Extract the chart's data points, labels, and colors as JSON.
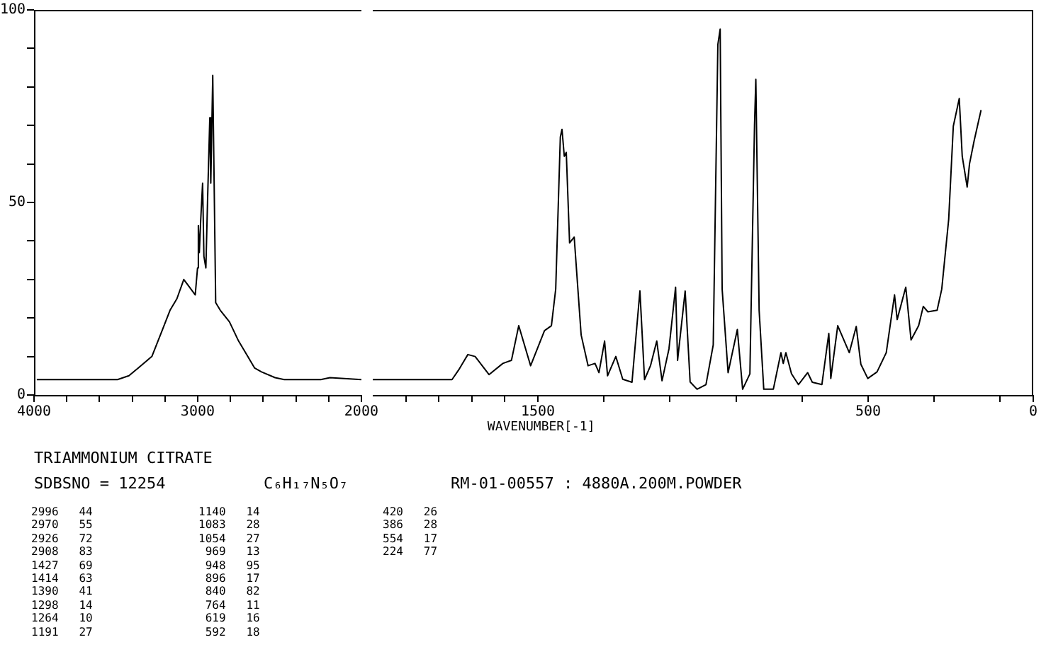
{
  "chart_data": [
    {
      "type": "line",
      "color": "#000000",
      "xlim": [
        4000,
        2000
      ],
      "ylim": [
        0,
        100
      ],
      "xticks": [
        4000,
        {
          "value": 3800,
          "label": null
        },
        {
          "value": 3600,
          "label": null
        },
        {
          "value": 3400,
          "label": null
        },
        {
          "value": 3200,
          "label": null
        },
        3000,
        {
          "value": 2800,
          "label": null
        },
        {
          "value": 2600,
          "label": null
        },
        {
          "value": 2400,
          "label": null
        },
        {
          "value": 2200,
          "label": null
        },
        2000
      ],
      "yticks": [
        0,
        {
          "value": 10,
          "label": null
        },
        {
          "value": 20,
          "label": null
        },
        {
          "value": 30,
          "label": null
        },
        {
          "value": 40,
          "label": null
        },
        50,
        {
          "value": 60,
          "label": null
        },
        {
          "value": 70,
          "label": null
        },
        {
          "value": 80,
          "label": null
        },
        {
          "value": 90,
          "label": null
        },
        100
      ],
      "x": [
        3983,
        3490,
        3420,
        3364,
        3280,
        3224,
        3169,
        3127,
        3085,
        3050,
        3015,
        3001,
        2996,
        2990,
        2982,
        2970,
        2962,
        2950,
        2940,
        2926,
        2920,
        2908,
        2890,
        2862,
        2806,
        2750,
        2694,
        2652,
        2610,
        2527,
        2471,
        2248,
        2192,
        2000
      ],
      "values": [
        4,
        4,
        5,
        7,
        10,
        16,
        22,
        25,
        30,
        28,
        26,
        33,
        44,
        37,
        45,
        55,
        36,
        33,
        50,
        72,
        55,
        83,
        24,
        22,
        19,
        14,
        10,
        7,
        6,
        4.5,
        4,
        4,
        4.5,
        4
      ],
      "annotations": [
        "TRIAMMONIUM CITRATE",
        "SDBSNO = 12254",
        "C₆H₁₇N₅O₇",
        "RM-01-00557 : 4880A.200M.POWDER",
        "2996   44",
        "2970   55",
        "2926   72",
        "2908   83",
        "1427   69",
        "1414   63",
        "1390   41",
        "1298   14",
        "1264   10",
        "1191   27",
        "1140   14",
        "1083   28",
        "1054   27",
        " 969   13",
        " 948   95",
        " 896   17",
        " 840   82",
        " 764   11",
        " 619   16",
        " 592   18",
        "420   26",
        "386   28",
        "554   17",
        "224   77"
      ]
    },
    {
      "type": "line",
      "color": "#000000",
      "xlim": [
        2000,
        0
      ],
      "ylim": [
        0,
        100
      ],
      "tick_labels": "x",
      "xlabel": "WAVENUMBER[-1]",
      "xticks": [
        {
          "value": 1900,
          "label": null
        },
        {
          "value": 1800,
          "label": null
        },
        {
          "value": 1700,
          "label": null
        },
        {
          "value": 1600,
          "label": null
        },
        1500,
        {
          "value": 1300,
          "label": null
        },
        {
          "value": 1100,
          "label": null
        },
        {
          "value": 900,
          "label": null
        },
        {
          "value": 700,
          "label": null
        },
        500,
        {
          "value": 300,
          "label": null
        },
        {
          "value": 100,
          "label": null
        },
        0
      ],
      "x": [
        2000,
        1929,
        1760,
        1740,
        1712,
        1690,
        1648,
        1606,
        1580,
        1558,
        1522,
        1480,
        1459,
        1446,
        1432,
        1427,
        1420,
        1414,
        1404,
        1390,
        1369,
        1348,
        1327,
        1315,
        1298,
        1289,
        1264,
        1243,
        1215,
        1191,
        1177,
        1159,
        1140,
        1124,
        1103,
        1083,
        1077,
        1054,
        1039,
        1018,
        991,
        969,
        955,
        948,
        942,
        924,
        896,
        880,
        858,
        844,
        840,
        830,
        816,
        787,
        764,
        757,
        749,
        732,
        711,
        683,
        669,
        640,
        619,
        613,
        592,
        557,
        536,
        522,
        501,
        473,
        445,
        420,
        412,
        386,
        370,
        347,
        333,
        319,
        291,
        277,
        256,
        242,
        224,
        215,
        200,
        193,
        179,
        158
      ],
      "values": [
        4,
        4,
        4,
        6.5,
        10.5,
        10,
        5.3,
        8.2,
        9,
        18,
        7.6,
        16.7,
        18,
        27.5,
        67,
        69,
        62,
        63,
        39.5,
        41,
        15.6,
        7.6,
        8.2,
        5.8,
        14,
        5,
        10,
        4.1,
        3.3,
        27,
        4,
        7.6,
        14,
        3.7,
        12,
        28,
        9,
        27,
        3.4,
        1.5,
        2.7,
        13,
        91,
        95,
        27.5,
        5.8,
        17,
        1.5,
        5.5,
        70,
        82,
        22,
        1.5,
        1.5,
        11,
        8.2,
        11,
        5.5,
        2.7,
        5.8,
        3.3,
        2.7,
        16,
        4.3,
        18,
        11,
        17.8,
        8,
        4.3,
        6,
        11,
        26,
        19.6,
        28,
        14.3,
        18,
        23,
        21.6,
        22,
        27.5,
        45.6,
        69.8,
        77,
        62,
        54,
        60,
        66,
        74
      ]
    }
  ]
}
